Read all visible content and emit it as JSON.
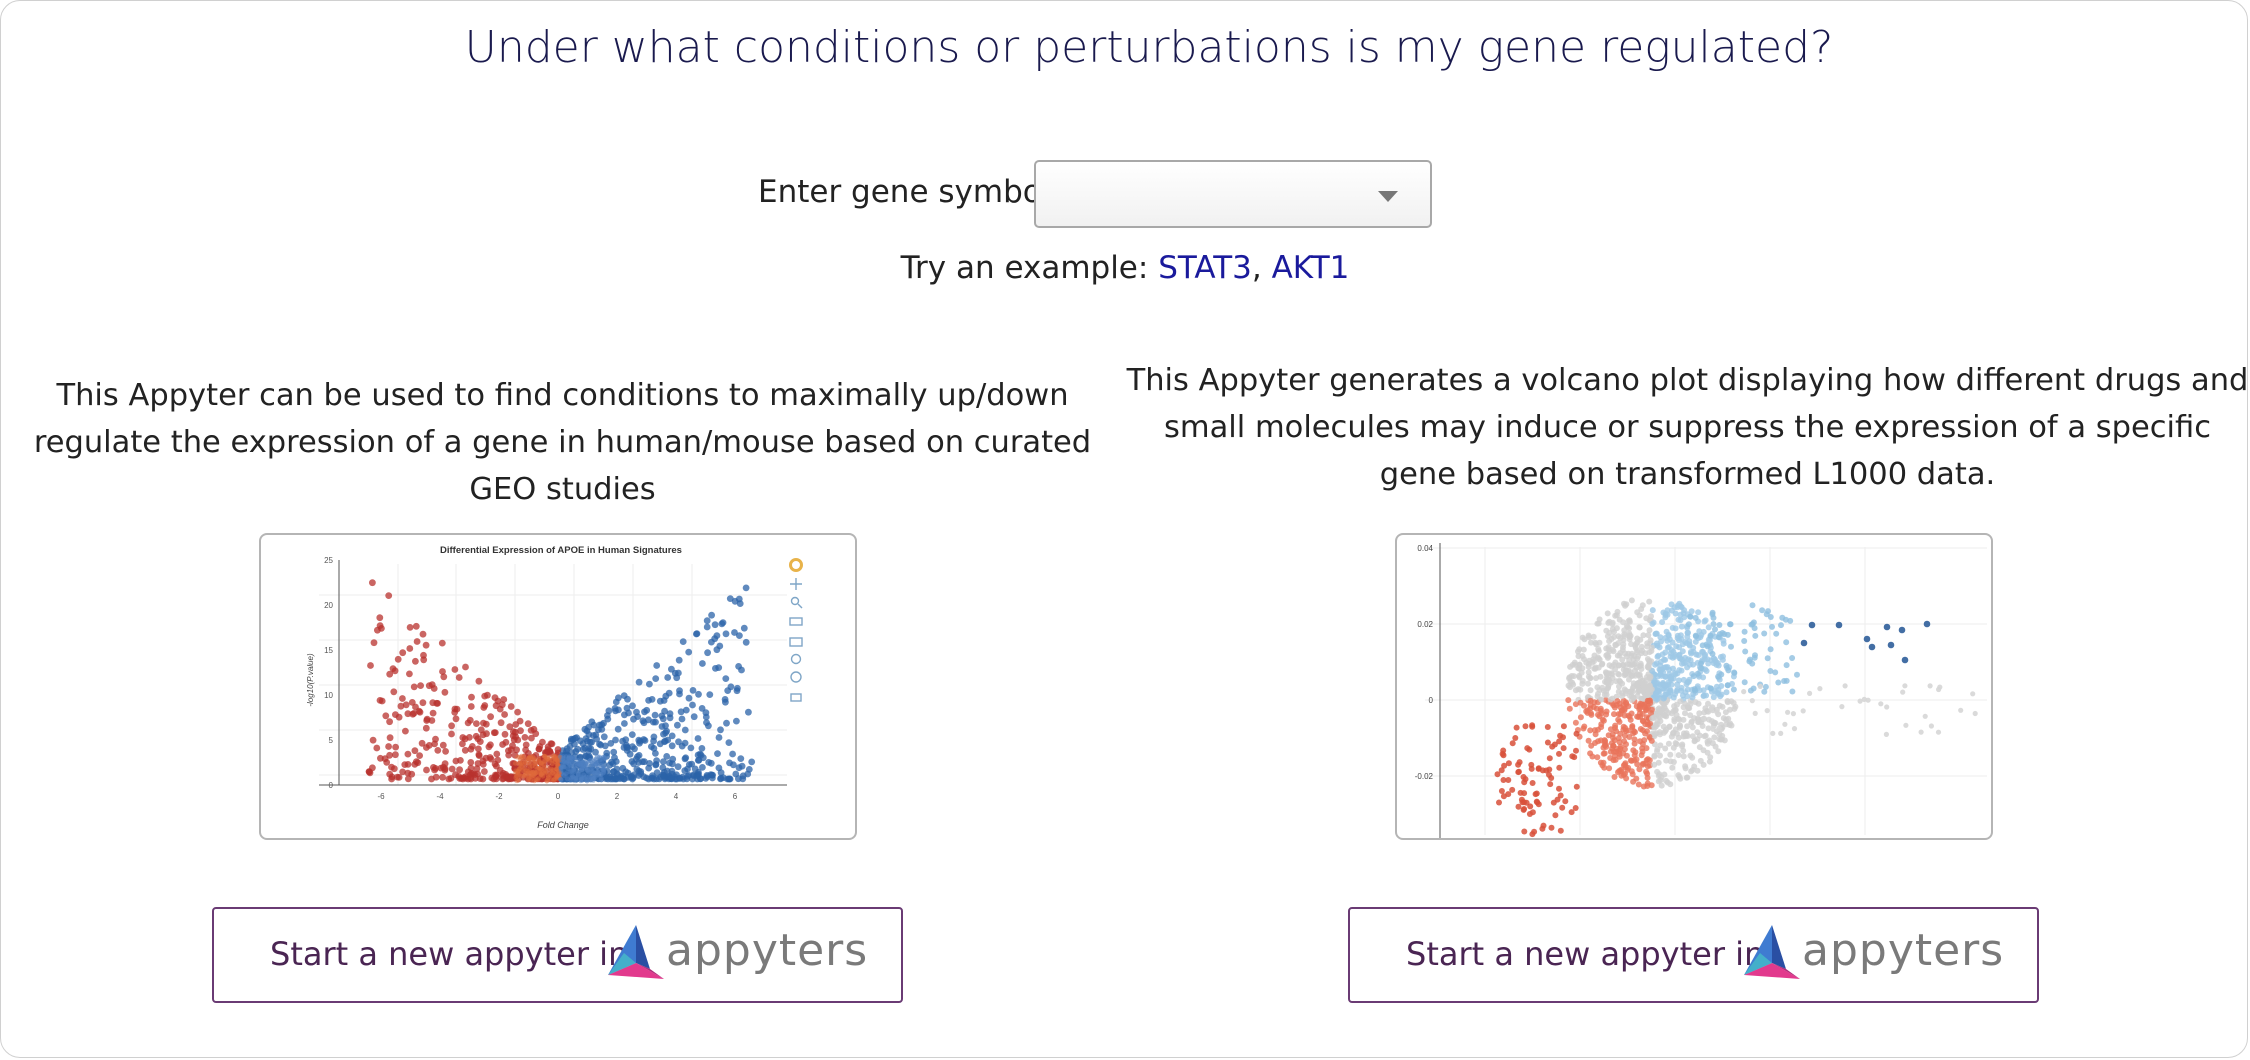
{
  "page": {
    "title": "Under what conditions or perturbations is my gene regulated?"
  },
  "gene_input": {
    "label": "Enter gene symbol:",
    "value": ""
  },
  "examples": {
    "prefix": "Try an example:",
    "items": [
      "STAT3",
      "AKT1"
    ],
    "separator": ", "
  },
  "appyters": [
    {
      "description": "This Appyter can be used to find conditions to maximally up/down regulate the expression of a gene in human/mouse based on curated GEO studies",
      "button_text": "Start a new appyter in",
      "logo_text": "appyters"
    },
    {
      "description": "This Appyter generates a volcano plot displaying how different drugs and small molecules may induce or suppress the expression of a specific gene based on transformed L1000 data.",
      "button_text": "Start a new appyter in",
      "logo_text": "appyters"
    }
  ],
  "preview_left": {
    "title": "Differential Expression of APOE in Human Signatures",
    "xlabel": "Fold Change",
    "ylabel": "-log10(P.value)",
    "x_ticks": [
      "-6",
      "-4",
      "-2",
      "0",
      "2",
      "4",
      "6"
    ],
    "y_ticks": [
      "0",
      "5",
      "10",
      "15",
      "20",
      "25"
    ]
  },
  "preview_right": {
    "y_ticks": [
      "0.04",
      "0.02",
      "0",
      "-0.02"
    ]
  },
  "colors": {
    "title": "#1a1a4e",
    "link": "#1a1a9c",
    "button_border": "#6a3b74",
    "up_regulated": "#2b63a8",
    "down_regulated": "#b8312d",
    "l1000_up": "#9ec8e6",
    "l1000_down": "#e8735a",
    "neutral": "#cfcfcf"
  }
}
